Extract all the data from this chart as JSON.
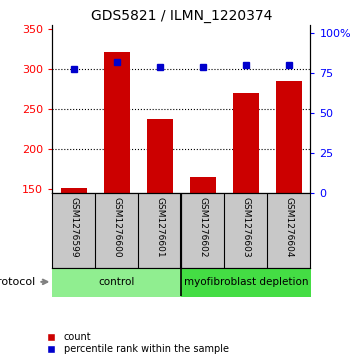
{
  "title": "GDS5821 / ILMN_1220374",
  "samples": [
    "GSM1276599",
    "GSM1276600",
    "GSM1276601",
    "GSM1276602",
    "GSM1276603",
    "GSM1276604"
  ],
  "counts": [
    152,
    322,
    238,
    165,
    270,
    286
  ],
  "percentiles": [
    78,
    82,
    79,
    79,
    80,
    80
  ],
  "groups": [
    "control",
    "control",
    "control",
    "myofibroblast depletion",
    "myofibroblast depletion",
    "myofibroblast depletion"
  ],
  "control_color": "#90EE90",
  "myofib_color": "#44DD44",
  "bar_color": "#CC0000",
  "dot_color": "#0000CC",
  "label_bg": "#C8C8C8",
  "ylim_left": [
    145,
    355
  ],
  "ylim_right": [
    0,
    105
  ],
  "yticks_left": [
    150,
    200,
    250,
    300,
    350
  ],
  "yticks_right": [
    0,
    25,
    50,
    75,
    100
  ],
  "ytick_labels_right": [
    "0",
    "25",
    "50",
    "75",
    "100%"
  ],
  "grid_values": [
    200,
    250,
    300
  ],
  "background_color": "#ffffff"
}
